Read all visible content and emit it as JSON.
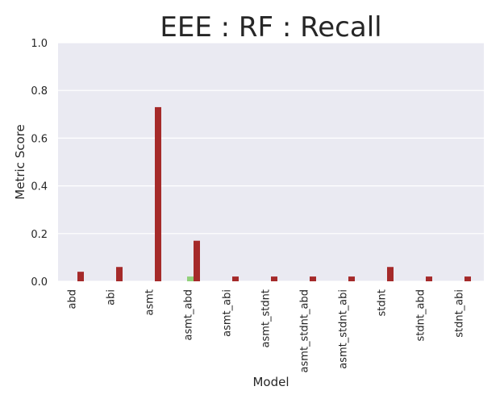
{
  "chart_data": {
    "type": "bar",
    "title": "EEE : RF : Recall",
    "xlabel": "Model",
    "ylabel": "Metric Score",
    "ylim": [
      0,
      1.0
    ],
    "yticks": [
      "0.0",
      "0.2",
      "0.4",
      "0.6",
      "0.8",
      "1.0"
    ],
    "grid": true,
    "categories": [
      "abd",
      "abi",
      "asmt",
      "asmt_abd",
      "asmt_abi",
      "asmt_stdnt",
      "asmt_stdnt_abd",
      "asmt_stdnt_abi",
      "stdnt",
      "stdnt_abd",
      "stdnt_abi"
    ],
    "series": [
      {
        "color": "#90d07a",
        "values": [
          0,
          0,
          0,
          0.02,
          0,
          0,
          0,
          0,
          0,
          0,
          0
        ]
      },
      {
        "color": "#a52a2a",
        "values": [
          0.04,
          0.06,
          0.73,
          0.17,
          0.02,
          0.02,
          0.02,
          0.02,
          0.06,
          0.02,
          0.02
        ]
      }
    ]
  },
  "colors": {
    "plot_background": "#eaeaf2",
    "grid": "#ffffff",
    "text": "#262626"
  }
}
